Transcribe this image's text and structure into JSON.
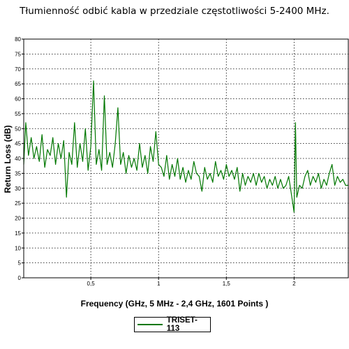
{
  "chart_data": {
    "type": "line",
    "title": "Tłumienność odbić kabla w przedziale częstotliwości 5-2400 MHz.",
    "xlabel": "Frequency (GHz, 5 MHz - 2,4 GHz, 1601 Points )",
    "ylabel": "Return Loss (dB)",
    "xlim": [
      0.005,
      2.4
    ],
    "ylim": [
      0,
      80
    ],
    "x_ticks": [
      {
        "value": 0.5,
        "label": "0,5"
      },
      {
        "value": 1,
        "label": "1"
      },
      {
        "value": 1.5,
        "label": "1,5"
      },
      {
        "value": 2,
        "label": "2"
      }
    ],
    "y_ticks": [
      0,
      5,
      10,
      15,
      20,
      25,
      30,
      35,
      40,
      45,
      50,
      55,
      60,
      65,
      70,
      75,
      80
    ],
    "grid": true,
    "legend_position": "bottom-center",
    "series": [
      {
        "name": "TRISET-113",
        "color": "#007700",
        "points": [
          [
            0.005,
            38
          ],
          [
            0.02,
            52
          ],
          [
            0.04,
            41
          ],
          [
            0.06,
            47
          ],
          [
            0.08,
            40
          ],
          [
            0.1,
            44
          ],
          [
            0.12,
            39
          ],
          [
            0.14,
            48
          ],
          [
            0.16,
            37
          ],
          [
            0.18,
            43
          ],
          [
            0.2,
            41
          ],
          [
            0.22,
            47
          ],
          [
            0.24,
            38
          ],
          [
            0.26,
            45
          ],
          [
            0.28,
            40
          ],
          [
            0.3,
            46
          ],
          [
            0.32,
            27
          ],
          [
            0.34,
            42
          ],
          [
            0.36,
            38
          ],
          [
            0.38,
            52
          ],
          [
            0.4,
            37
          ],
          [
            0.42,
            45
          ],
          [
            0.44,
            39
          ],
          [
            0.46,
            50
          ],
          [
            0.48,
            36
          ],
          [
            0.5,
            44
          ],
          [
            0.52,
            66
          ],
          [
            0.54,
            38
          ],
          [
            0.56,
            43
          ],
          [
            0.58,
            36
          ],
          [
            0.6,
            61
          ],
          [
            0.62,
            38
          ],
          [
            0.64,
            42
          ],
          [
            0.66,
            37
          ],
          [
            0.68,
            45
          ],
          [
            0.7,
            57
          ],
          [
            0.72,
            38
          ],
          [
            0.74,
            42
          ],
          [
            0.76,
            35
          ],
          [
            0.78,
            41
          ],
          [
            0.8,
            37
          ],
          [
            0.82,
            40
          ],
          [
            0.84,
            36
          ],
          [
            0.86,
            45
          ],
          [
            0.88,
            37
          ],
          [
            0.9,
            41
          ],
          [
            0.92,
            35
          ],
          [
            0.94,
            44
          ],
          [
            0.96,
            39
          ],
          [
            0.98,
            49
          ],
          [
            1.0,
            38
          ],
          [
            1.02,
            37
          ],
          [
            1.04,
            34
          ],
          [
            1.06,
            41
          ],
          [
            1.08,
            33
          ],
          [
            1.1,
            38
          ],
          [
            1.12,
            34
          ],
          [
            1.14,
            40
          ],
          [
            1.16,
            33
          ],
          [
            1.18,
            37
          ],
          [
            1.2,
            32
          ],
          [
            1.22,
            36
          ],
          [
            1.24,
            33
          ],
          [
            1.26,
            39
          ],
          [
            1.28,
            35
          ],
          [
            1.3,
            34
          ],
          [
            1.32,
            29
          ],
          [
            1.34,
            37
          ],
          [
            1.36,
            33
          ],
          [
            1.38,
            35
          ],
          [
            1.4,
            32
          ],
          [
            1.42,
            39
          ],
          [
            1.44,
            34
          ],
          [
            1.46,
            36
          ],
          [
            1.48,
            33
          ],
          [
            1.5,
            38
          ],
          [
            1.52,
            34
          ],
          [
            1.54,
            36
          ],
          [
            1.56,
            33
          ],
          [
            1.58,
            37
          ],
          [
            1.6,
            29
          ],
          [
            1.62,
            35
          ],
          [
            1.64,
            31
          ],
          [
            1.66,
            34
          ],
          [
            1.68,
            32
          ],
          [
            1.7,
            35
          ],
          [
            1.72,
            31
          ],
          [
            1.74,
            35
          ],
          [
            1.76,
            32
          ],
          [
            1.78,
            34
          ],
          [
            1.8,
            30
          ],
          [
            1.82,
            33
          ],
          [
            1.84,
            31
          ],
          [
            1.86,
            34
          ],
          [
            1.88,
            30
          ],
          [
            1.9,
            33
          ],
          [
            1.92,
            30
          ],
          [
            1.94,
            31
          ],
          [
            1.96,
            34
          ],
          [
            1.98,
            28
          ],
          [
            2.0,
            22
          ],
          [
            2.01,
            52
          ],
          [
            2.02,
            27
          ],
          [
            2.04,
            31
          ],
          [
            2.06,
            30
          ],
          [
            2.08,
            34
          ],
          [
            2.1,
            36
          ],
          [
            2.12,
            31
          ],
          [
            2.14,
            34
          ],
          [
            2.16,
            32
          ],
          [
            2.18,
            35
          ],
          [
            2.2,
            30
          ],
          [
            2.22,
            33
          ],
          [
            2.24,
            31
          ],
          [
            2.26,
            35
          ],
          [
            2.28,
            38
          ],
          [
            2.3,
            31
          ],
          [
            2.32,
            34
          ],
          [
            2.34,
            32
          ],
          [
            2.36,
            33
          ],
          [
            2.38,
            31
          ],
          [
            2.4,
            31
          ]
        ]
      }
    ]
  }
}
